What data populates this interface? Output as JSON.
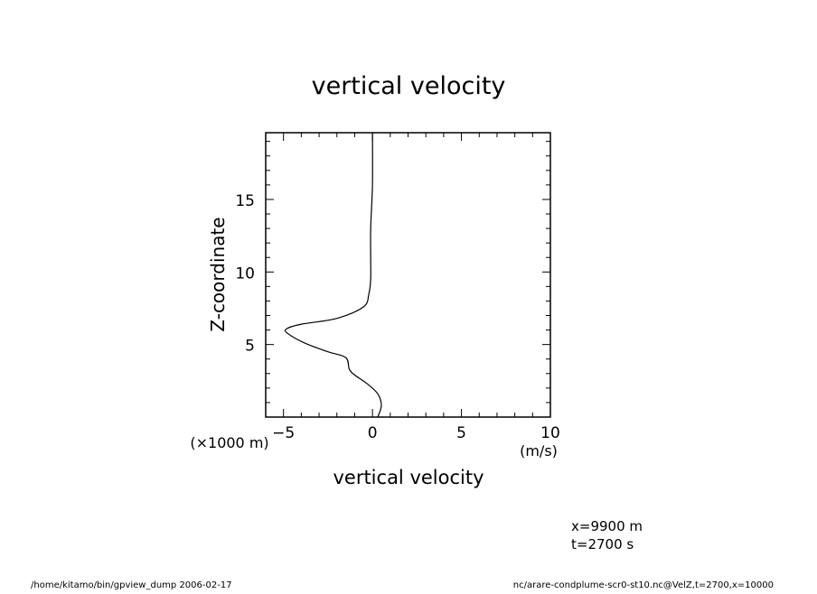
{
  "chart_data": {
    "type": "line",
    "title": "vertical velocity",
    "xlabel": "vertical velocity",
    "x_units": "(m/s)",
    "ylabel": "Z-coordinate",
    "y_units": "(×1000 m)",
    "xlim": [
      -6,
      10
    ],
    "ylim": [
      0,
      19.6
    ],
    "x_ticks": [
      -5,
      0,
      5,
      10
    ],
    "x_tick_labels": [
      "−5",
      "0",
      "5",
      "10"
    ],
    "y_ticks": [
      5,
      10,
      15
    ],
    "y_tick_labels": [
      "5",
      "10",
      "15"
    ],
    "grid": false,
    "series": [
      {
        "x": [
          0.3,
          0.5,
          0.3,
          -0.3,
          -1.0,
          -1.3,
          -1.5,
          -2.5,
          -3.8,
          -4.8,
          -4.8,
          -4.0,
          -2.0,
          -0.5,
          -0.2,
          -0.1,
          -0.1,
          -0.1,
          0.0,
          0.0
        ],
        "y": [
          0.0,
          0.8,
          1.6,
          2.3,
          2.9,
          3.3,
          4.1,
          4.5,
          5.1,
          5.8,
          6.1,
          6.4,
          6.8,
          7.6,
          8.5,
          9.5,
          11.0,
          13.0,
          16.0,
          19.6
        ]
      }
    ]
  },
  "annotations": {
    "x_position": "x=9900  m",
    "time": "t=2700  s"
  },
  "footer": {
    "left": "/home/kitamo/bin/gpview_dump   2006-02-17",
    "right": "nc/arare-condplume-scr0-st10.nc@VelZ,t=2700,x=10000"
  }
}
